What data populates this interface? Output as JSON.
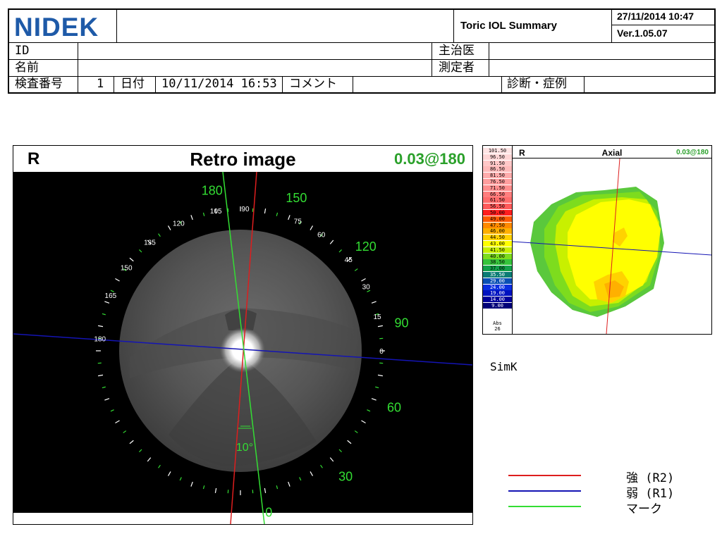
{
  "header": {
    "brand": "NIDEK",
    "report_title": "Toric IOL Summary",
    "datetime": "27/11/2014 10:47",
    "version": "Ver.1.05.07",
    "labels": {
      "id": "ID",
      "name": "名前",
      "doctor": "主治医",
      "operator": "測定者",
      "exam_no": "検査番号",
      "date": "日付",
      "comment": "コメント",
      "diagnosis": "診断・症例"
    },
    "values": {
      "id": "",
      "name": "",
      "doctor": "",
      "operator": "",
      "exam_no": "1",
      "date": "10/11/2014 16:53",
      "comment": "",
      "diagnosis": ""
    }
  },
  "retro": {
    "eye": "R",
    "title": "Retro image",
    "value": "0.03@180",
    "green_labels": [
      "180",
      "150",
      "120",
      "90",
      "60",
      "30",
      "0"
    ],
    "white_labels": [
      "90",
      "75",
      "60",
      "45",
      "30",
      "15",
      "0",
      "105",
      "120",
      "135",
      "150",
      "165",
      "180"
    ],
    "mark_angle": "10°"
  },
  "axial": {
    "eye": "R",
    "title": "Axial",
    "value": "0.03@180",
    "scale": [
      {
        "v": "101.50",
        "c": "#ffe4e4"
      },
      {
        "v": "96.50",
        "c": "#ffd6d6"
      },
      {
        "v": "91.50",
        "c": "#ffc8c8"
      },
      {
        "v": "86.50",
        "c": "#ffbaba"
      },
      {
        "v": "81.50",
        "c": "#ffacac"
      },
      {
        "v": "76.50",
        "c": "#ff9e9e"
      },
      {
        "v": "71.50",
        "c": "#ff8e8e"
      },
      {
        "v": "66.50",
        "c": "#ff7e7e"
      },
      {
        "v": "61.50",
        "c": "#ff6c6c"
      },
      {
        "v": "56.50",
        "c": "#ff5a5a"
      },
      {
        "v": "50.00",
        "c": "#ff1e1e"
      },
      {
        "v": "49.00",
        "c": "#ff5a00"
      },
      {
        "v": "47.50",
        "c": "#ff8a00"
      },
      {
        "v": "46.00",
        "c": "#ffb000"
      },
      {
        "v": "44.50",
        "c": "#ffd200"
      },
      {
        "v": "43.00",
        "c": "#ffff00"
      },
      {
        "v": "41.50",
        "c": "#c8f000"
      },
      {
        "v": "40.00",
        "c": "#7ddc1e"
      },
      {
        "v": "38.50",
        "c": "#36c43c"
      },
      {
        "v": "37.00",
        "c": "#12a04a"
      },
      {
        "v": "35.50",
        "c": "#0b7c74"
      },
      {
        "v": "29.00",
        "c": "#0a50b4"
      },
      {
        "v": "24.00",
        "c": "#0a2ee0"
      },
      {
        "v": "19.00",
        "c": "#0012c0"
      },
      {
        "v": "14.00",
        "c": "#00009a"
      },
      {
        "v": "9.00",
        "c": "#000078"
      }
    ],
    "scale_footer": [
      "Abs",
      "26"
    ]
  },
  "simk_label": "SimK",
  "legend": [
    {
      "label": "強 (R2)",
      "color": "#dd1e1e"
    },
    {
      "label": "弱 (R1)",
      "color": "#1414b4"
    },
    {
      "label": "マーク",
      "color": "#33dd33"
    }
  ]
}
